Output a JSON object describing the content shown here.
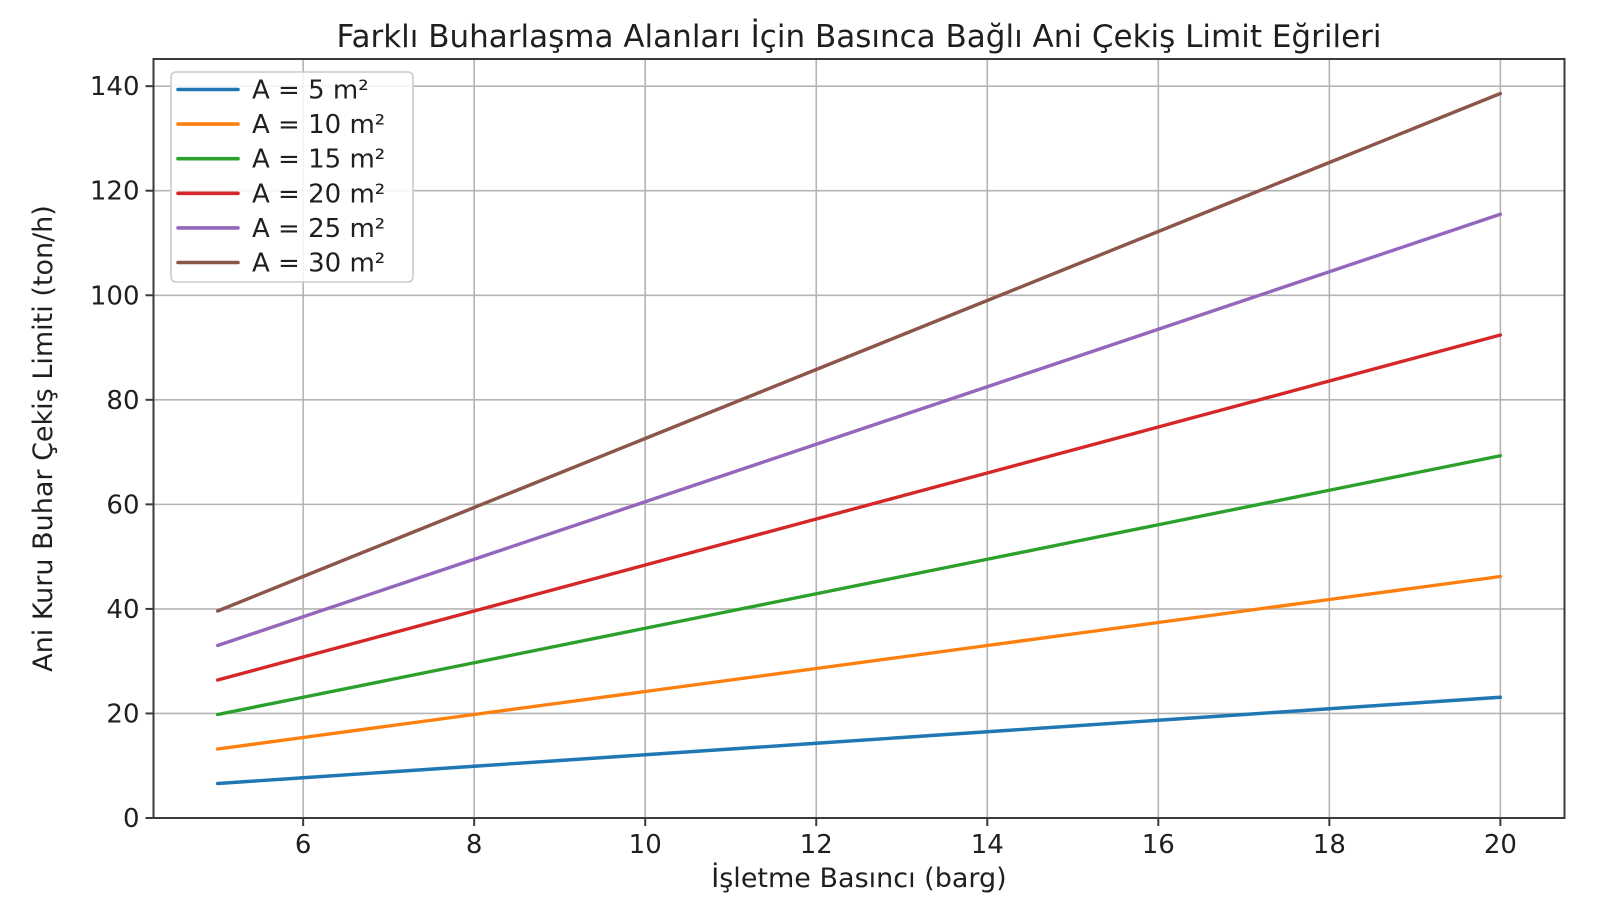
{
  "style": {
    "background": "#ffffff",
    "grid_color": "#b4b4b4",
    "spine_color": "#3a3a3a",
    "tick_color": "#3a3a3a",
    "text_color": "#1f1f1f",
    "legend_border": "#cccccc",
    "legend_background": "#ffffff"
  },
  "chart_data": {
    "type": "line",
    "title": "Farklı Buharlaşma Alanları İçin Basınca Bağlı Ani Çekiş Limit Eğrileri",
    "xlabel": "İşletme Basıncı (barg)",
    "ylabel": "Ani Kuru Buhar Çekiş Limiti (ton/h)",
    "x": [
      5,
      6,
      7,
      8,
      9,
      10,
      11,
      12,
      13,
      14,
      15,
      16,
      17,
      18,
      19,
      20
    ],
    "series": [
      {
        "name": "A = 5 m²",
        "color": "#1f77b4",
        "values": [
          6.6,
          7.7,
          8.8,
          9.9,
          11.0,
          12.1,
          13.2,
          14.3,
          15.4,
          16.5,
          17.6,
          18.7,
          19.8,
          20.9,
          22.0,
          23.1
        ]
      },
      {
        "name": "A = 10 m²",
        "color": "#ff7f0e",
        "values": [
          13.2,
          15.4,
          17.6,
          19.8,
          22.0,
          24.2,
          26.4,
          28.6,
          30.8,
          33.0,
          35.2,
          37.4,
          39.6,
          41.8,
          44.0,
          46.2
        ]
      },
      {
        "name": "A = 15 m²",
        "color": "#2ca02c",
        "values": [
          19.8,
          23.1,
          26.4,
          29.7,
          33.0,
          36.3,
          39.6,
          42.9,
          46.2,
          49.5,
          52.8,
          56.1,
          59.4,
          62.7,
          66.0,
          69.3
        ]
      },
      {
        "name": "A = 20 m²",
        "color": "#d62728",
        "values": [
          26.4,
          30.8,
          35.2,
          39.6,
          44.0,
          48.4,
          52.8,
          57.2,
          61.6,
          66.0,
          70.4,
          74.8,
          79.2,
          83.6,
          88.0,
          92.4
        ]
      },
      {
        "name": "A = 25 m²",
        "color": "#9467bd",
        "values": [
          33.0,
          38.5,
          44.0,
          49.5,
          55.0,
          60.5,
          66.0,
          71.5,
          77.0,
          82.5,
          88.0,
          93.5,
          99.0,
          104.5,
          110.0,
          115.5
        ]
      },
      {
        "name": "A = 30 m²",
        "color": "#8c564b",
        "values": [
          39.6,
          46.2,
          52.8,
          59.4,
          66.0,
          72.6,
          79.2,
          85.8,
          92.4,
          99.0,
          105.6,
          112.2,
          118.8,
          125.4,
          132.0,
          138.6
        ]
      }
    ],
    "xlim": [
      4.25,
      20.75
    ],
    "ylim": [
      0,
      145.2
    ],
    "xticks": [
      6,
      8,
      10,
      12,
      14,
      16,
      18,
      20
    ],
    "yticks": [
      0,
      20,
      40,
      60,
      80,
      100,
      120,
      140
    ],
    "grid": true,
    "legend_position": "upper-left"
  }
}
